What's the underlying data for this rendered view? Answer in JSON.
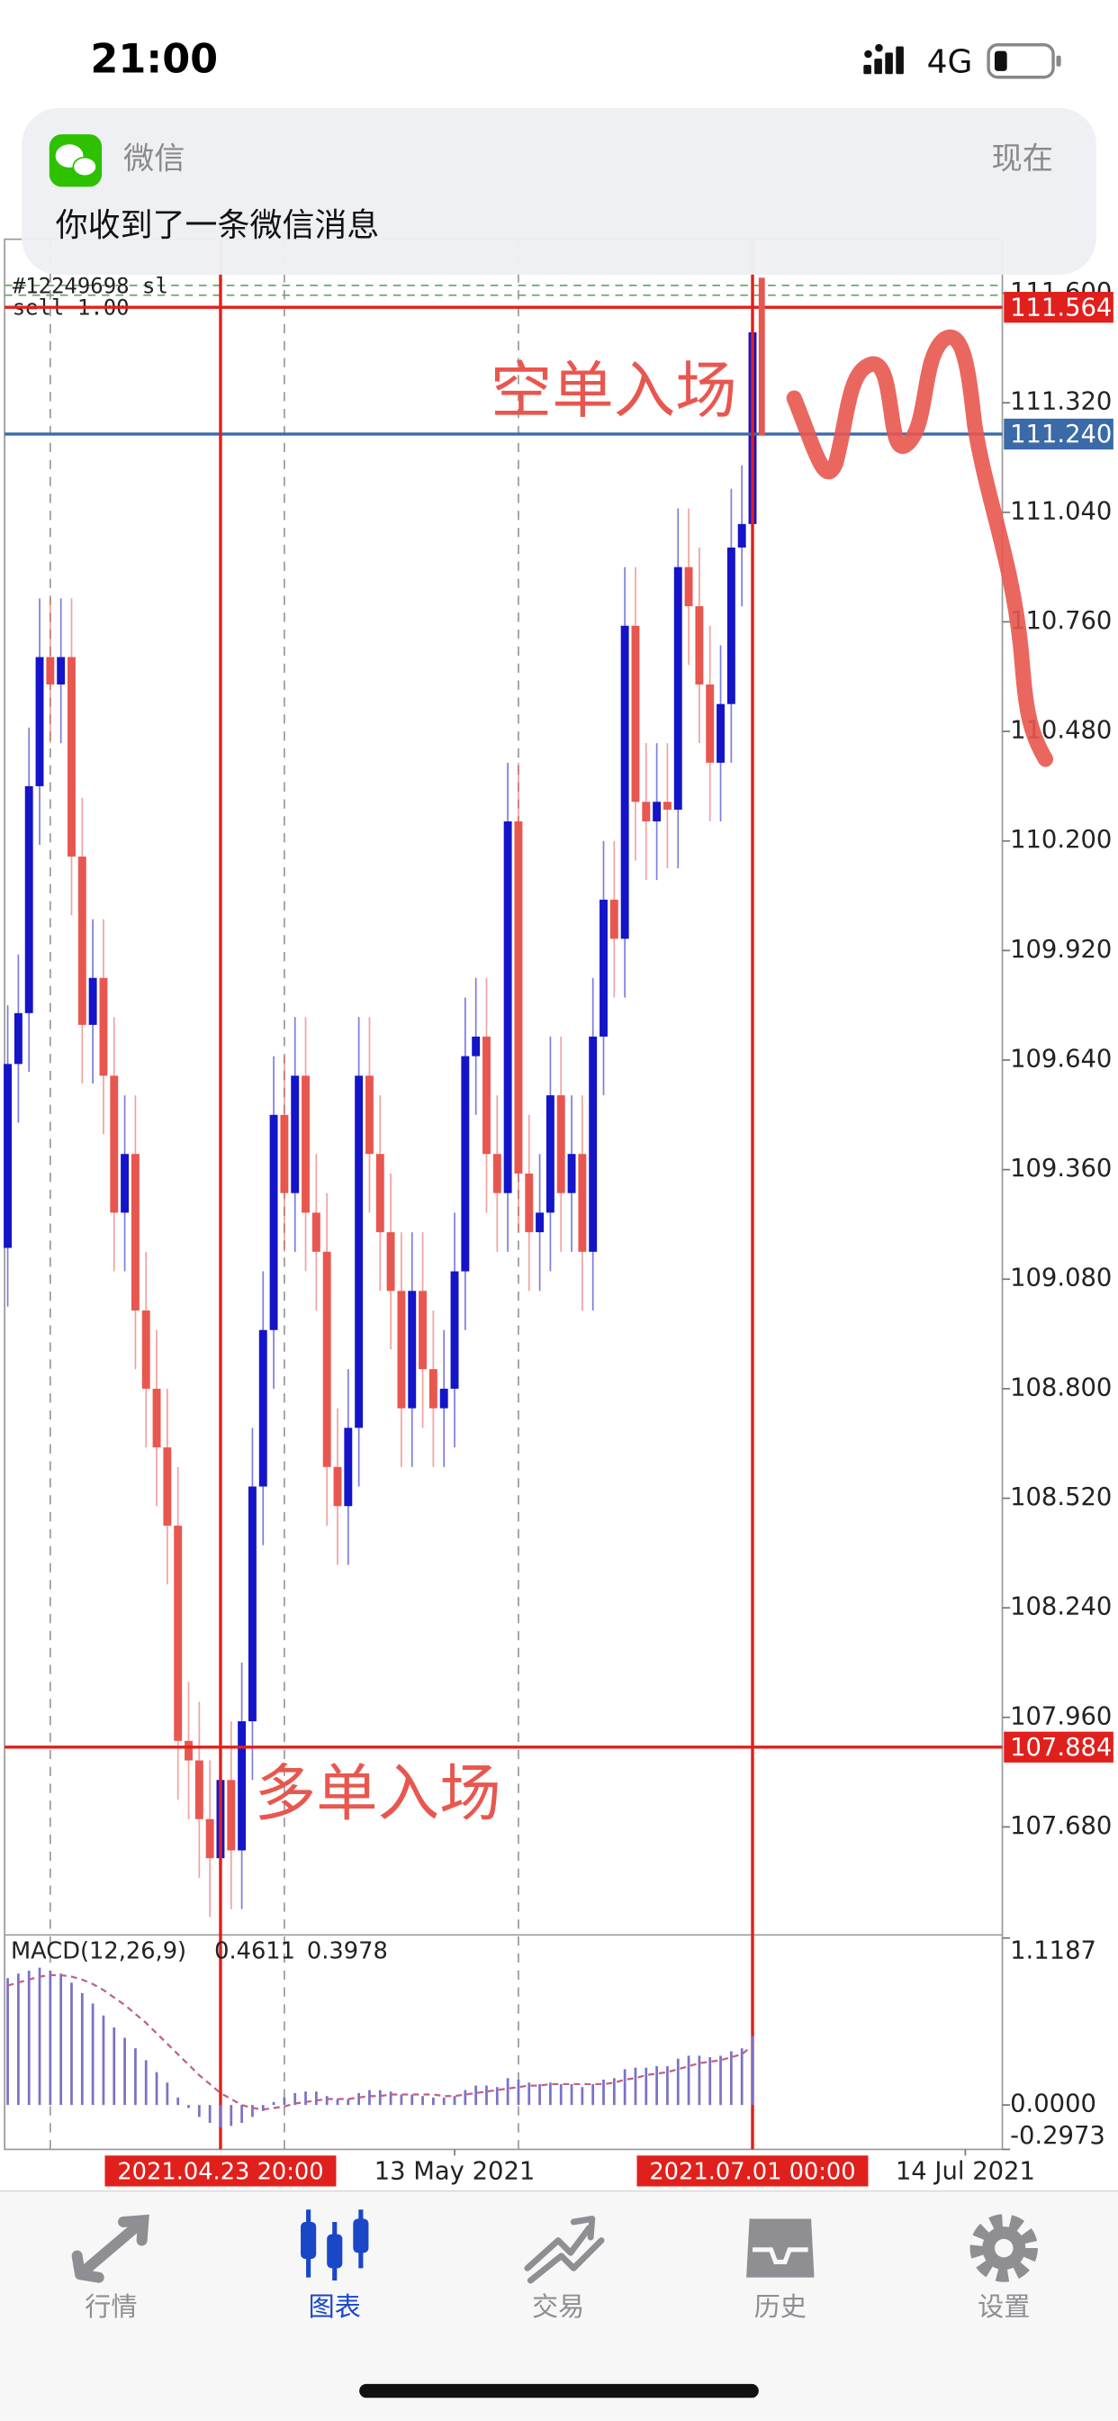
{
  "status_bar": {
    "time": "21:00",
    "network": "4G"
  },
  "notification": {
    "app": "微信",
    "time": "现在",
    "message": "你收到了一条微信消息"
  },
  "chart_data": {
    "type": "candlestick",
    "up_color": "#1414c8",
    "down_color": "#e8574f",
    "ylim": [
      107.404,
      111.738
    ],
    "yticks": [
      {
        "value": 111.6,
        "label": "111.600"
      },
      {
        "value": 111.32,
        "label": "111.320"
      },
      {
        "value": 111.04,
        "label": "111.040"
      },
      {
        "value": 110.76,
        "label": "110.760"
      },
      {
        "value": 110.48,
        "label": "110.480"
      },
      {
        "value": 110.2,
        "label": "110.200"
      },
      {
        "value": 109.92,
        "label": "109.920"
      },
      {
        "value": 109.64,
        "label": "109.640"
      },
      {
        "value": 109.36,
        "label": "109.360"
      },
      {
        "value": 109.08,
        "label": "109.080"
      },
      {
        "value": 108.8,
        "label": "108.800"
      },
      {
        "value": 108.52,
        "label": "108.520"
      },
      {
        "value": 108.24,
        "label": "108.240"
      },
      {
        "value": 107.96,
        "label": "107.960"
      },
      {
        "value": 107.68,
        "label": "107.680"
      }
    ],
    "open": [
      109.16,
      109.63,
      109.76,
      110.34,
      110.67,
      110.6,
      110.67,
      110.16,
      109.73,
      109.85,
      109.6,
      109.25,
      109.4,
      109.0,
      108.8,
      108.65,
      108.45,
      107.9,
      107.85,
      107.7,
      107.6,
      107.8,
      107.62,
      107.95,
      108.55,
      108.95,
      109.5,
      109.3,
      109.6,
      109.25,
      109.15,
      108.6,
      108.5,
      108.7,
      109.6,
      109.4,
      109.2,
      109.05,
      108.75,
      109.05,
      108.85,
      108.75,
      108.8,
      109.1,
      109.65,
      109.7,
      109.4,
      109.3,
      110.25,
      109.35,
      109.2,
      109.25,
      109.55,
      109.3,
      109.4,
      109.15,
      109.7,
      110.05,
      109.95,
      110.75,
      110.3,
      110.25,
      110.3,
      110.28,
      110.9,
      110.8,
      110.6,
      110.4,
      110.55,
      110.95,
      111.01
    ],
    "high": [
      109.78,
      109.91,
      110.49,
      110.82,
      110.82,
      110.82,
      110.82,
      110.31,
      110.0,
      110.0,
      109.75,
      109.55,
      109.55,
      109.15,
      108.95,
      108.8,
      108.6,
      108.05,
      108.0,
      107.85,
      107.95,
      107.95,
      108.1,
      108.7,
      109.1,
      109.65,
      109.65,
      109.75,
      109.75,
      109.4,
      109.3,
      108.75,
      108.85,
      109.75,
      109.75,
      109.55,
      109.35,
      109.2,
      109.2,
      109.2,
      109.0,
      108.95,
      109.25,
      109.8,
      109.85,
      109.85,
      109.55,
      110.4,
      110.4,
      109.5,
      109.4,
      109.7,
      109.7,
      109.55,
      109.55,
      109.85,
      110.2,
      110.2,
      110.9,
      110.9,
      110.45,
      110.45,
      110.45,
      111.05,
      111.05,
      110.95,
      110.75,
      110.7,
      111.1,
      111.16,
      111.56
    ],
    "low": [
      109.01,
      109.48,
      109.61,
      110.19,
      110.45,
      110.45,
      110.01,
      109.58,
      109.58,
      109.45,
      109.1,
      109.1,
      108.85,
      108.65,
      108.5,
      108.3,
      107.75,
      107.7,
      107.55,
      107.45,
      107.45,
      107.47,
      107.47,
      107.8,
      108.4,
      108.8,
      109.15,
      109.15,
      109.1,
      109.0,
      108.45,
      108.35,
      108.35,
      108.55,
      109.25,
      109.05,
      108.9,
      108.6,
      108.6,
      108.7,
      108.6,
      108.6,
      108.65,
      108.95,
      109.5,
      109.25,
      109.15,
      109.15,
      109.2,
      109.05,
      109.05,
      109.1,
      109.15,
      109.15,
      109.0,
      109.0,
      109.55,
      109.8,
      109.8,
      110.15,
      110.1,
      110.1,
      110.13,
      110.13,
      110.65,
      110.45,
      110.25,
      110.25,
      110.4,
      110.8,
      110.86
    ],
    "close": [
      109.63,
      109.76,
      110.34,
      110.67,
      110.6,
      110.67,
      110.16,
      109.73,
      109.85,
      109.6,
      109.25,
      109.4,
      109.0,
      108.8,
      108.65,
      108.45,
      107.9,
      107.85,
      107.7,
      107.6,
      107.8,
      107.62,
      107.95,
      108.55,
      108.95,
      109.5,
      109.3,
      109.6,
      109.25,
      109.15,
      108.6,
      108.5,
      108.7,
      109.6,
      109.4,
      109.2,
      109.05,
      108.75,
      109.05,
      108.85,
      108.75,
      108.8,
      109.1,
      109.65,
      109.7,
      109.4,
      109.3,
      110.25,
      109.35,
      109.2,
      109.25,
      109.55,
      109.3,
      109.4,
      109.15,
      109.7,
      110.05,
      109.95,
      110.75,
      110.3,
      110.25,
      110.3,
      110.28,
      110.9,
      110.8,
      110.6,
      110.4,
      110.55,
      110.95,
      111.01,
      111.5
    ],
    "hlines": [
      {
        "value": 111.564,
        "label": "111.564",
        "color": "#e0201c"
      },
      {
        "value": 111.24,
        "label": "111.240",
        "color": "#3b6aa8"
      },
      {
        "value": 107.884,
        "label": "107.884",
        "color": "#e0201c"
      }
    ],
    "order": {
      "label": "#12249698 sl",
      "type": "sell 1.00",
      "levels": [
        111.62,
        111.595
      ]
    },
    "separators": [
      4,
      26,
      48,
      70
    ],
    "vlines": [
      {
        "index": 20,
        "label": "2021.04.23 20:00"
      },
      {
        "index": 70,
        "label": "2021.07.01 00:00"
      }
    ],
    "time_labels": [
      {
        "index": 42,
        "label": "13 May 2021"
      },
      {
        "index": 90,
        "label": "14 Jul 2021"
      }
    ],
    "annotations": [
      "空单入场",
      "多单入场"
    ],
    "macd": {
      "label": "MACD(12,26,9)",
      "ylim": [
        -0.2973,
        1.1187
      ],
      "yticks": [
        1.1187,
        {
          "value": 0,
          "label": "0.0000"
        },
        -0.2973
      ],
      "histogram": [
        0.85,
        0.88,
        0.9,
        0.92,
        0.9,
        0.88,
        0.82,
        0.75,
        0.68,
        0.6,
        0.52,
        0.45,
        0.38,
        0.3,
        0.22,
        0.15,
        0.05,
        -0.02,
        -0.08,
        -0.12,
        -0.15,
        -0.14,
        -0.12,
        -0.08,
        -0.04,
        0.02,
        0.05,
        0.08,
        0.09,
        0.09,
        0.06,
        0.04,
        0.04,
        0.08,
        0.1,
        0.1,
        0.09,
        0.07,
        0.07,
        0.06,
        0.05,
        0.05,
        0.06,
        0.1,
        0.13,
        0.13,
        0.12,
        0.18,
        0.17,
        0.15,
        0.14,
        0.15,
        0.14,
        0.14,
        0.12,
        0.14,
        0.17,
        0.18,
        0.24,
        0.25,
        0.25,
        0.26,
        0.26,
        0.31,
        0.33,
        0.33,
        0.32,
        0.33,
        0.36,
        0.38,
        0.4611
      ],
      "signal": [
        0.8,
        0.82,
        0.84,
        0.86,
        0.87,
        0.87,
        0.86,
        0.84,
        0.81,
        0.77,
        0.72,
        0.67,
        0.61,
        0.55,
        0.48,
        0.41,
        0.34,
        0.27,
        0.2,
        0.14,
        0.08,
        0.04,
        0.0,
        -0.02,
        -0.03,
        -0.02,
        -0.01,
        0.01,
        0.02,
        0.03,
        0.04,
        0.04,
        0.04,
        0.05,
        0.06,
        0.06,
        0.07,
        0.07,
        0.07,
        0.07,
        0.07,
        0.06,
        0.06,
        0.07,
        0.08,
        0.09,
        0.1,
        0.11,
        0.12,
        0.13,
        0.13,
        0.14,
        0.14,
        0.14,
        0.14,
        0.14,
        0.14,
        0.15,
        0.17,
        0.18,
        0.2,
        0.21,
        0.22,
        0.24,
        0.26,
        0.28,
        0.29,
        0.3,
        0.32,
        0.34,
        0.3978
      ],
      "histogram_color": "#7b72c4",
      "signal_color": "#c0608a"
    }
  },
  "tab_bar": {
    "items": [
      "行情",
      "图表",
      "交易",
      "历史",
      "设置"
    ],
    "active": 1,
    "active_color": "#1a47c8",
    "inactive_color": "#8e8e93"
  }
}
